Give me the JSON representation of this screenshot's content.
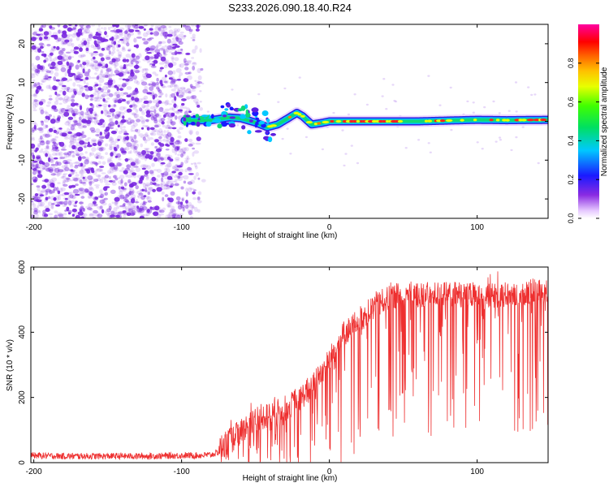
{
  "figure_title": "S233.2026.090.18.40.R24",
  "colors": {
    "spectrogram_noise": "#7a28e0",
    "snr_line": "#ee3030",
    "axis": "#000000"
  },
  "chart_data": [
    {
      "type": "heatmap",
      "title": "S233.2026.090.18.40.R24",
      "xlabel": "Height of straight line (km)",
      "ylabel": "Frequency (Hz)",
      "xlim": [
        -202,
        148
      ],
      "ylim": [
        -25,
        25
      ],
      "xticks": [
        -200,
        -100,
        0,
        100
      ],
      "yticks": [
        -20,
        -10,
        0,
        10,
        20
      ],
      "colorbar": {
        "label": "Normalized spectral amplitude",
        "range": [
          0,
          1
        ],
        "ticks": [
          0.0,
          0.2,
          0.4,
          0.6,
          0.8
        ],
        "colormap": "rainbow (white-violet-blue-cyan-green-yellow-orange-red-magenta)"
      },
      "tone_track": {
        "description": "carrier tone frequency vs height",
        "x": [
          -98,
          -80,
          -68,
          -60,
          -50,
          -42,
          -35,
          -28,
          -22,
          -18,
          -12,
          -5,
          0,
          20,
          40,
          60,
          80,
          100,
          120,
          148
        ],
        "freq": [
          0.2,
          0.3,
          1.0,
          0.8,
          -0.3,
          -1.5,
          -0.8,
          0.8,
          2.2,
          1.3,
          -0.8,
          -0.4,
          0,
          0,
          0,
          0,
          0.2,
          0.4,
          0.3,
          0.4
        ]
      },
      "noise_region_x": [
        -202,
        -85
      ]
    },
    {
      "type": "line",
      "title": "",
      "xlabel": "Height of straight line (km)",
      "ylabel": "SNR (10 * v/v)",
      "xlim": [
        -202,
        148
      ],
      "ylim": [
        0,
        600
      ],
      "xticks": [
        -200,
        -100,
        0,
        100
      ],
      "yticks": [
        0,
        200,
        400,
        600
      ],
      "series": [
        {
          "name": "SNR",
          "x": [
            -202,
            -180,
            -160,
            -140,
            -120,
            -100,
            -90,
            -80,
            -70,
            -60,
            -50,
            -40,
            -30,
            -20,
            -10,
            0,
            10,
            20,
            30,
            40,
            50,
            60,
            70,
            80,
            90,
            100,
            110,
            120,
            130,
            140,
            148
          ],
          "y": [
            22,
            20,
            20,
            20,
            20,
            22,
            22,
            24,
            40,
            80,
            120,
            130,
            150,
            180,
            230,
            300,
            380,
            420,
            460,
            490,
            500,
            500,
            500,
            500,
            500,
            490,
            495,
            500,
            505,
            510,
            505
          ]
        }
      ]
    }
  ]
}
